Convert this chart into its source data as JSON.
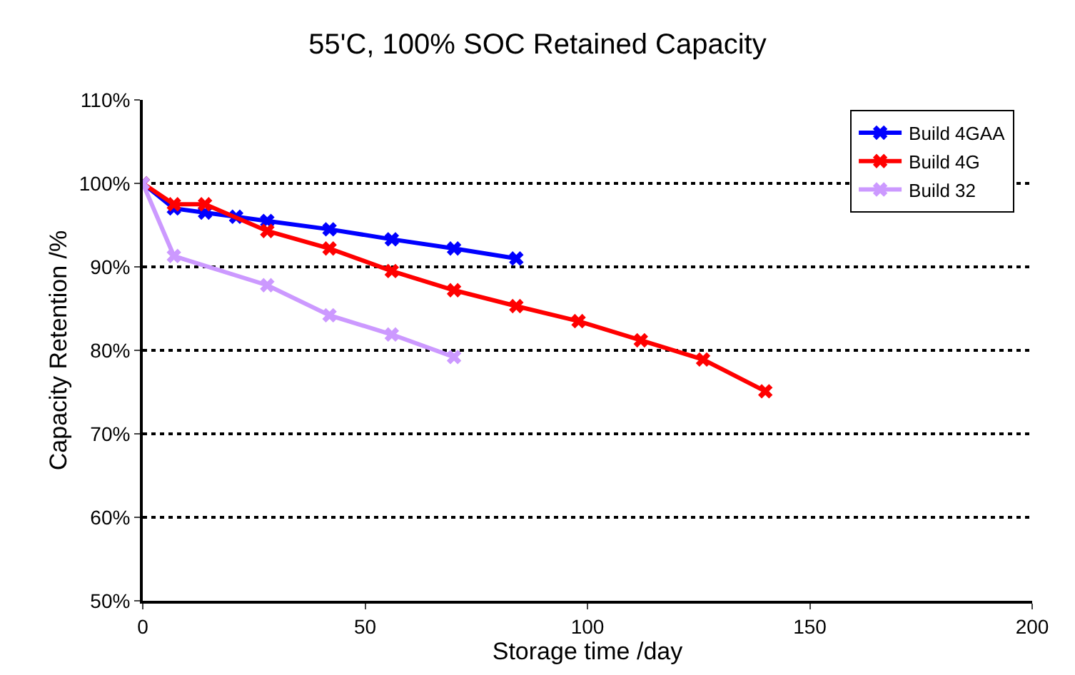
{
  "chart_data": {
    "type": "line",
    "title": "55'C, 100% SOC Retained Capacity",
    "xlabel": "Storage time /day",
    "ylabel": "Capacity Retention /%",
    "xlim": [
      0,
      200
    ],
    "xticks": [
      0,
      50,
      100,
      150,
      200
    ],
    "ylim": [
      50,
      110
    ],
    "yticks": [
      {
        "value": 50,
        "label": "50%"
      },
      {
        "value": 60,
        "label": "60%"
      },
      {
        "value": 70,
        "label": "70%"
      },
      {
        "value": 80,
        "label": "80%"
      },
      {
        "value": 90,
        "label": "90%"
      },
      {
        "value": 100,
        "label": "100%"
      },
      {
        "value": 110,
        "label": "110%"
      }
    ],
    "grid": "y",
    "legend": "top right",
    "marker": "cross",
    "line_style": "solid",
    "series": [
      {
        "name": "Build 4GAA",
        "color": "#0000ff",
        "x": [
          0,
          7,
          14,
          21,
          28,
          42,
          56,
          70,
          84
        ],
        "values": [
          100,
          97,
          96.5,
          96,
          95.5,
          94.5,
          93.3,
          92.2,
          91
        ]
      },
      {
        "name": "Build 4G",
        "color": "#ff0000",
        "x": [
          0,
          7,
          14,
          28,
          42,
          56,
          70,
          84,
          98,
          112,
          126,
          140
        ],
        "values": [
          100,
          97.5,
          97.5,
          94.3,
          92.2,
          89.5,
          87.2,
          85.3,
          83.5,
          81.2,
          78.9,
          75.1
        ]
      },
      {
        "name": "Build 32",
        "color": "#cc99ff",
        "x": [
          0,
          7,
          28,
          42,
          56,
          70
        ],
        "values": [
          100,
          91.3,
          87.8,
          84.2,
          81.9,
          79.2
        ]
      }
    ]
  }
}
